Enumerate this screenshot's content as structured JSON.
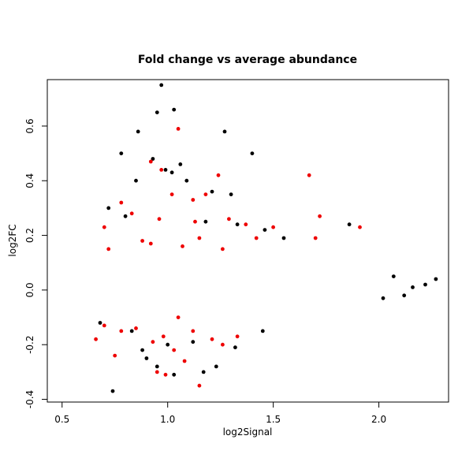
{
  "chart_data": {
    "type": "scatter",
    "title": "Fold change vs average abundance",
    "xlabel": "log2Signal",
    "ylabel": "log2FC",
    "xlim": [
      0.43,
      2.33
    ],
    "ylim": [
      -0.41,
      0.77
    ],
    "xticks": [
      {
        "value": 0.5,
        "label": "0.5"
      },
      {
        "value": 1.0,
        "label": "1.0"
      },
      {
        "value": 1.5,
        "label": "1.5"
      },
      {
        "value": 2.0,
        "label": "2.0"
      }
    ],
    "yticks": [
      {
        "value": -0.4,
        "label": "-0.4"
      },
      {
        "value": -0.2,
        "label": "-0.2"
      },
      {
        "value": 0.0,
        "label": "0.0"
      },
      {
        "value": 0.2,
        "label": "0.2"
      },
      {
        "value": 0.4,
        "label": "0.4"
      },
      {
        "value": 0.6,
        "label": "0.6"
      }
    ],
    "grid": false,
    "legend": "none",
    "colors": {
      "black": "#000000",
      "blue": "#0000ff",
      "red": "#ee0000"
    },
    "series": [
      {
        "color": "#000000",
        "points": [
          [
            0.97,
            0.75
          ],
          [
            1.03,
            0.66
          ],
          [
            0.95,
            0.65
          ],
          [
            1.27,
            0.58
          ],
          [
            0.86,
            0.58
          ],
          [
            0.78,
            0.5
          ],
          [
            1.4,
            0.5
          ],
          [
            0.93,
            0.48
          ],
          [
            1.06,
            0.46
          ],
          [
            0.99,
            0.44
          ],
          [
            1.02,
            0.43
          ],
          [
            1.09,
            0.4
          ],
          [
            0.85,
            0.4
          ],
          [
            1.3,
            0.35
          ],
          [
            1.21,
            0.36
          ],
          [
            0.72,
            0.3
          ],
          [
            0.8,
            0.27
          ],
          [
            1.18,
            0.25
          ],
          [
            1.33,
            0.24
          ],
          [
            1.86,
            0.24
          ],
          [
            1.46,
            0.22
          ],
          [
            1.55,
            0.19
          ],
          [
            0.74,
            -0.37
          ],
          [
            1.03,
            -0.31
          ],
          [
            0.95,
            -0.28
          ],
          [
            1.23,
            -0.28
          ],
          [
            1.17,
            -0.3
          ],
          [
            0.9,
            -0.25
          ],
          [
            0.88,
            -0.22
          ],
          [
            1.0,
            -0.2
          ],
          [
            1.12,
            -0.19
          ],
          [
            1.32,
            -0.21
          ],
          [
            0.83,
            -0.15
          ],
          [
            1.45,
            -0.15
          ],
          [
            0.68,
            -0.12
          ],
          [
            2.27,
            0.04
          ],
          [
            2.22,
            0.02
          ],
          [
            2.16,
            0.01
          ],
          [
            2.12,
            -0.02
          ],
          [
            2.07,
            0.05
          ],
          [
            2.02,
            -0.03
          ]
        ]
      },
      {
        "color": "#ee0000",
        "points": [
          [
            1.05,
            0.59
          ],
          [
            0.92,
            0.47
          ],
          [
            0.97,
            0.44
          ],
          [
            1.24,
            0.42
          ],
          [
            1.67,
            0.42
          ],
          [
            1.02,
            0.35
          ],
          [
            0.78,
            0.32
          ],
          [
            1.12,
            0.33
          ],
          [
            1.18,
            0.35
          ],
          [
            0.83,
            0.28
          ],
          [
            0.96,
            0.26
          ],
          [
            1.13,
            0.25
          ],
          [
            1.29,
            0.26
          ],
          [
            1.37,
            0.24
          ],
          [
            1.5,
            0.23
          ],
          [
            1.72,
            0.27
          ],
          [
            0.7,
            0.23
          ],
          [
            0.88,
            0.18
          ],
          [
            0.92,
            0.17
          ],
          [
            1.07,
            0.16
          ],
          [
            1.15,
            0.19
          ],
          [
            1.42,
            0.19
          ],
          [
            1.7,
            0.19
          ],
          [
            1.91,
            0.23
          ],
          [
            0.72,
            0.15
          ],
          [
            1.26,
            0.15
          ],
          [
            1.15,
            -0.35
          ],
          [
            0.99,
            -0.31
          ],
          [
            0.95,
            -0.3
          ],
          [
            0.75,
            -0.24
          ],
          [
            1.26,
            -0.2
          ],
          [
            1.33,
            -0.17
          ],
          [
            1.08,
            -0.26
          ],
          [
            1.03,
            -0.22
          ],
          [
            0.98,
            -0.17
          ],
          [
            0.93,
            -0.19
          ],
          [
            0.85,
            -0.14
          ],
          [
            0.78,
            -0.15
          ],
          [
            1.12,
            -0.15
          ],
          [
            1.21,
            -0.18
          ],
          [
            0.66,
            -0.18
          ],
          [
            1.05,
            -0.1
          ],
          [
            0.7,
            -0.13
          ]
        ]
      }
    ]
  }
}
